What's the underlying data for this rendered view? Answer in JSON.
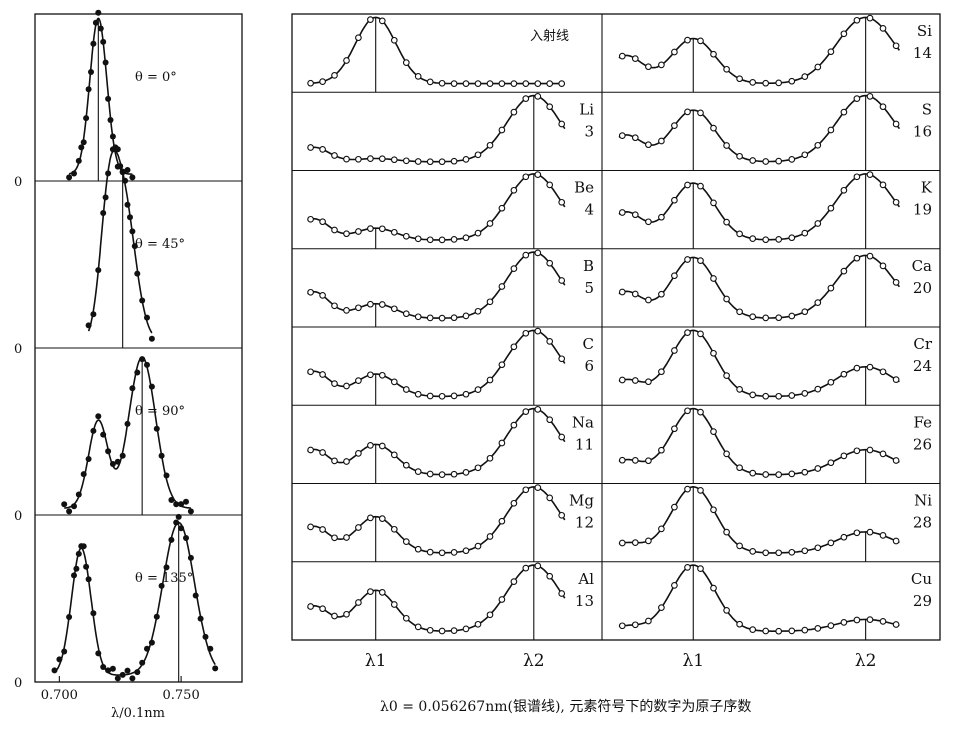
{
  "chart_data": [
    {
      "type": "scatter",
      "panels": [
        {
          "theta_label": "θ = 0°",
          "peaks": [
            {
              "x": 0.716,
              "height": 0.98,
              "width": 0.0035
            }
          ],
          "marker": 0.716,
          "points_x": [
            0.704,
            0.706,
            0.708,
            0.709,
            0.71,
            0.711,
            0.712,
            0.713,
            0.714,
            0.715,
            0.716,
            0.717,
            0.718,
            0.719,
            0.72,
            0.721,
            0.722,
            0.723,
            0.724,
            0.726,
            0.728,
            0.73
          ]
        },
        {
          "theta_label": "θ = 45°",
          "peaks": [
            {
              "x": 0.72,
              "height": 0.62,
              "width": 0.0035
            },
            {
              "x": 0.726,
              "height": 0.92,
              "width": 0.005
            }
          ],
          "marker": 0.726,
          "points_x": [
            0.712,
            0.714,
            0.716,
            0.718,
            0.719,
            0.72,
            0.722,
            0.724,
            0.725,
            0.726,
            0.727,
            0.728,
            0.729,
            0.73,
            0.731,
            0.732,
            0.734,
            0.736,
            0.738
          ]
        },
        {
          "theta_label": "θ = 90°",
          "peaks": [
            {
              "x": 0.716,
              "height": 0.55,
              "width": 0.004
            },
            {
              "x": 0.734,
              "height": 0.95,
              "width": 0.0055
            }
          ],
          "marker": 0.734,
          "points_x": [
            0.702,
            0.704,
            0.706,
            0.708,
            0.71,
            0.712,
            0.714,
            0.716,
            0.718,
            0.72,
            0.722,
            0.724,
            0.726,
            0.728,
            0.73,
            0.732,
            0.734,
            0.736,
            0.738,
            0.74,
            0.742,
            0.744,
            0.746,
            0.748,
            0.75,
            0.752,
            0.754
          ]
        },
        {
          "theta_label": "θ = 135°",
          "peaks": [
            {
              "x": 0.709,
              "height": 0.8,
              "width": 0.004
            },
            {
              "x": 0.749,
              "height": 0.96,
              "width": 0.0065
            }
          ],
          "marker": 0.749,
          "points_x": [
            0.698,
            0.7,
            0.702,
            0.704,
            0.706,
            0.707,
            0.708,
            0.709,
            0.71,
            0.711,
            0.712,
            0.714,
            0.716,
            0.718,
            0.72,
            0.722,
            0.724,
            0.726,
            0.728,
            0.73,
            0.732,
            0.734,
            0.736,
            0.738,
            0.74,
            0.742,
            0.744,
            0.746,
            0.748,
            0.749,
            0.75,
            0.752,
            0.754,
            0.756,
            0.758,
            0.76,
            0.762,
            0.764
          ]
        }
      ],
      "x_range": [
        0.69,
        0.775
      ],
      "x_ticks": [
        "0.700",
        "0.750"
      ],
      "x_tick_values": [
        0.7,
        0.75
      ],
      "y_tick_label": "0",
      "xlabel": "λ/0.1nm"
    },
    {
      "type": "line",
      "incident_label": "入射线",
      "incident_peak": 0.27,
      "lambda1_label": "λ1",
      "lambda2_label": "λ2",
      "lambda1": 0.27,
      "lambda2": 0.78,
      "left_column": [
        {
          "symbol": "",
          "z": "",
          "a1": 1.0,
          "a2": 0.0,
          "bump": 0.0
        },
        {
          "symbol": "Li",
          "z": "3",
          "a1": 0.05,
          "a2": 1.0,
          "bump": 0.22
        },
        {
          "symbol": "Be",
          "z": "4",
          "a1": 0.18,
          "a2": 1.0,
          "bump": 0.32
        },
        {
          "symbol": "B",
          "z": "5",
          "a1": 0.22,
          "a2": 1.0,
          "bump": 0.4
        },
        {
          "symbol": "C",
          "z": "6",
          "a1": 0.34,
          "a2": 1.0,
          "bump": 0.38
        },
        {
          "symbol": "Na",
          "z": "11",
          "a1": 0.46,
          "a2": 1.0,
          "bump": 0.38
        },
        {
          "symbol": "Mg",
          "z": "12",
          "a1": 0.55,
          "a2": 1.0,
          "bump": 0.4
        },
        {
          "symbol": "Al",
          "z": "13",
          "a1": 0.62,
          "a2": 1.0,
          "bump": 0.38
        }
      ],
      "right_column": [
        {
          "symbol": "Si",
          "z": "14",
          "a1": 0.68,
          "a2": 1.0,
          "bump": 0.42
        },
        {
          "symbol": "S",
          "z": "16",
          "a1": 0.78,
          "a2": 1.0,
          "bump": 0.4
        },
        {
          "symbol": "K",
          "z": "19",
          "a1": 0.86,
          "a2": 1.0,
          "bump": 0.42
        },
        {
          "symbol": "Ca",
          "z": "20",
          "a1": 0.92,
          "a2": 0.95,
          "bump": 0.4
        },
        {
          "symbol": "Cr",
          "z": "24",
          "a1": 1.0,
          "a2": 0.45,
          "bump": 0.25
        },
        {
          "symbol": "Fe",
          "z": "26",
          "a1": 1.0,
          "a2": 0.38,
          "bump": 0.22
        },
        {
          "symbol": "Ni",
          "z": "28",
          "a1": 1.0,
          "a2": 0.32,
          "bump": 0.15
        },
        {
          "symbol": "Cu",
          "z": "29",
          "a1": 1.0,
          "a2": 0.18,
          "bump": 0.08
        }
      ],
      "caption": "λ0 = 0.056267nm(银谱线), 元素符号下的数字为原子序数"
    }
  ]
}
